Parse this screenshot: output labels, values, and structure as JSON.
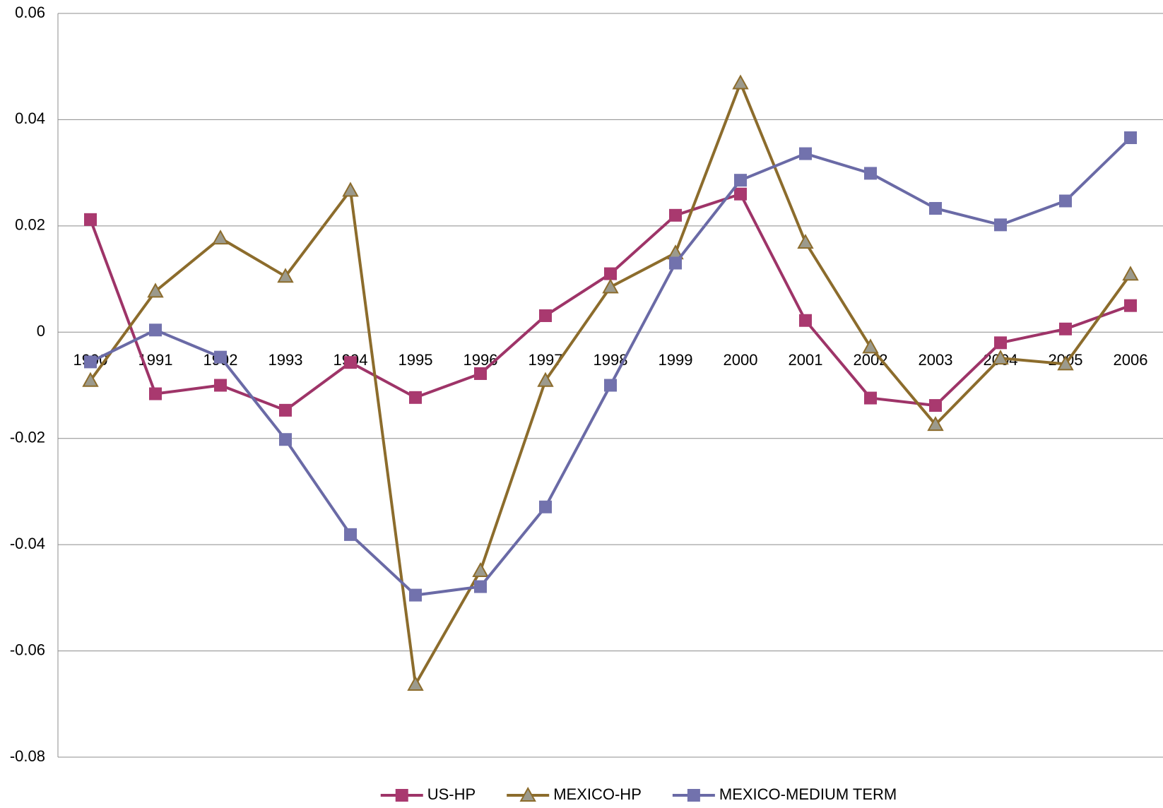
{
  "chart_data": {
    "type": "line",
    "categories": [
      "1990",
      "1991",
      "1992",
      "1993",
      "1994",
      "1995",
      "1996",
      "1997",
      "1998",
      "1999",
      "2000",
      "2001",
      "2002",
      "2003",
      "2004",
      "2005",
      "2006"
    ],
    "series": [
      {
        "name": "US-HP",
        "color": "#9e3468",
        "marker": "square",
        "marker_color": "#a9396f",
        "values": [
          0.0212,
          -0.0116,
          -0.01,
          -0.0147,
          -0.0057,
          -0.0123,
          -0.0078,
          0.0031,
          0.011,
          0.022,
          0.026,
          0.0022,
          -0.0124,
          -0.0138,
          -0.002,
          0.0006,
          0.005
        ]
      },
      {
        "name": "MEXICO-HP",
        "color": "#8c6c2c",
        "marker": "triangle",
        "marker_color": "#9c9a8c",
        "values": [
          -0.0091,
          0.0077,
          0.0177,
          0.0105,
          0.0267,
          -0.0663,
          -0.0449,
          -0.0091,
          0.0085,
          0.0149,
          0.0469,
          0.0169,
          -0.0028,
          -0.0174,
          -0.0049,
          -0.006,
          0.0109
        ]
      },
      {
        "name": "MEXICO-MEDIUM TERM",
        "color": "#6a6aa6",
        "marker": "square",
        "marker_color": "#7272ad",
        "values": [
          -0.0056,
          0.0004,
          -0.0047,
          -0.0202,
          -0.0381,
          -0.0495,
          -0.0479,
          -0.0329,
          -0.01,
          0.013,
          0.0286,
          0.0336,
          0.0299,
          0.0233,
          0.0202,
          0.0247,
          0.0366
        ]
      }
    ],
    "ylim": [
      -0.08,
      0.06
    ],
    "yticks": [
      0.06,
      0.04,
      0.02,
      0,
      -0.02,
      -0.04,
      -0.06,
      -0.08
    ],
    "grid": true,
    "legend": "bottom"
  }
}
